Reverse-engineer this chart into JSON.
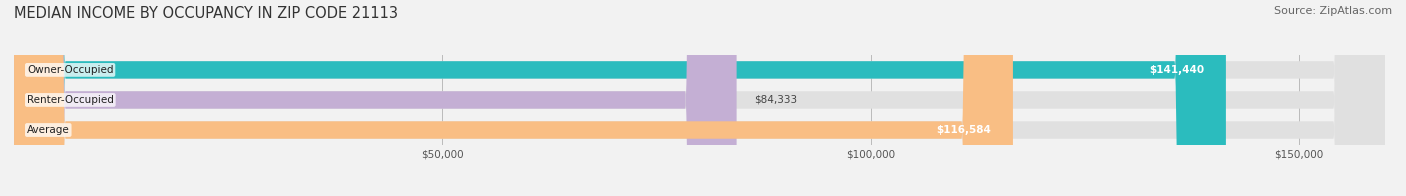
{
  "title": "MEDIAN INCOME BY OCCUPANCY IN ZIP CODE 21113",
  "source": "Source: ZipAtlas.com",
  "categories": [
    "Owner-Occupied",
    "Renter-Occupied",
    "Average"
  ],
  "values": [
    141440,
    84333,
    116584
  ],
  "bar_colors": [
    "#2bbcbe",
    "#c4afd4",
    "#f9be84"
  ],
  "value_labels": [
    "$141,440",
    "$84,333",
    "$116,584"
  ],
  "label_inside": [
    true,
    false,
    true
  ],
  "xlim": [
    0,
    160000
  ],
  "xticks": [
    50000,
    100000,
    150000
  ],
  "xtick_labels": [
    "$50,000",
    "$100,000",
    "$150,000"
  ],
  "background_color": "#f2f2f2",
  "bar_background_color": "#e0e0e0",
  "title_fontsize": 10.5,
  "source_fontsize": 8,
  "bar_height": 0.58,
  "figsize": [
    14.06,
    1.96
  ],
  "dpi": 100
}
